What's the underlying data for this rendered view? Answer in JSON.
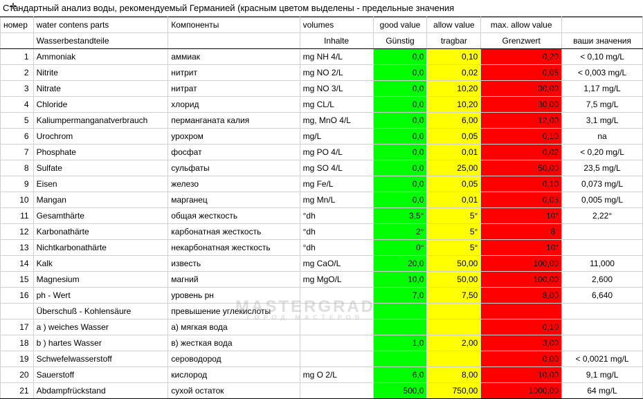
{
  "title": "Стандартный анализ воды, рекомендуемый Германией (красным цветом выделены - предельные значения",
  "colors": {
    "good": "#00ff00",
    "allow": "#ffff00",
    "max": "#ff0000",
    "grid": "#d0d0d0",
    "frame": "#000000"
  },
  "header1": {
    "num": "номер",
    "de": "water contens parts",
    "ru": "Компоненты",
    "unit": "volumes",
    "good": "good value",
    "allow": "allow value",
    "max": "max. allow value",
    "user": ""
  },
  "header2": {
    "num": "",
    "de": "Wasserbestandteile",
    "ru": "",
    "unit": "Inhalte",
    "good": "Günstig",
    "allow": "tragbar",
    "max": "Grenzwert",
    "user": "ваши значения"
  },
  "rows": [
    {
      "n": "1",
      "de": "Ammoniak",
      "ru": "аммиак",
      "unit": "mg  NH 4/L",
      "good": "0,0",
      "allow": "0,10",
      "max": "0,20",
      "user": "< 0,10 mg/L"
    },
    {
      "n": "2",
      "de": "Nitrite",
      "ru": "нитрит",
      "unit": "mg  NO 2/L",
      "good": "0,0",
      "allow": "0,02",
      "max": "0,05",
      "user": "< 0,003 mg/L"
    },
    {
      "n": "3",
      "de": "Nitrate",
      "ru": "нитрат",
      "unit": "mg  NO 3/L",
      "good": "0,0",
      "allow": "10,20",
      "max": "30,00",
      "user": "1,17 mg/L"
    },
    {
      "n": "4",
      "de": "Chloride",
      "ru": "хлорид",
      "unit": "mg  CL/L",
      "good": "0,0",
      "allow": "10,20",
      "max": "30,00",
      "user": "7,5 mg/L"
    },
    {
      "n": "5",
      "de": "Kaliumpermanganatverbrauch",
      "ru": "перманганата калия",
      "unit": "mg, MnO  4/L",
      "good": "0,0",
      "allow": "6,00",
      "max": "12,00",
      "user": "3,1 mg/L"
    },
    {
      "n": "6",
      "de": "Urochrom",
      "ru": "урохром",
      "unit": "mg/L",
      "good": "0,0",
      "allow": "0,05",
      "max": "0,10",
      "user": "na"
    },
    {
      "n": "7",
      "de": "Phosphate",
      "ru": "фосфат",
      "unit": "mg  PO 4/L",
      "good": "0,0",
      "allow": "0,01",
      "max": "0,02",
      "user": "< 0,20 mg/L"
    },
    {
      "n": "8",
      "de": "Sulfate",
      "ru": "сульфаты",
      "unit": "mg SO 4/L",
      "good": "0,0",
      "allow": "25,00",
      "max": "50,00",
      "user": "23,5 mg/L"
    },
    {
      "n": "9",
      "de": "Eisen",
      "ru": "железо",
      "unit": "mg  Fe/L",
      "good": "0,0",
      "allow": "0,05",
      "max": "0,10",
      "user": "0,073 mg/L"
    },
    {
      "n": "10",
      "de": "Mangan",
      "ru": "марганец",
      "unit": "mg Mn/L",
      "good": "0,0",
      "allow": "0,01",
      "max": "0,03",
      "user": "0,005 mg/L"
    },
    {
      "n": "11",
      "de": "Gesamthärte",
      "ru": "общая жесткость",
      "unit": "°dh",
      "good": "3,5°",
      "allow": "5°",
      "max": "10°",
      "user": "2,22°"
    },
    {
      "n": "12",
      "de": "Karbonathärte",
      "ru": "карбонатная жесткость",
      "unit": "°dh",
      "good": "2°",
      "allow": "5°",
      "max": "8°",
      "user": ""
    },
    {
      "n": "13",
      "de": "Nichtkarbonathärte",
      "ru": "некарбонатная жесткость",
      "unit": "°dh",
      "good": "0°",
      "allow": "5°",
      "max": "10°",
      "user": ""
    },
    {
      "n": "14",
      "de": "Kalk",
      "ru": "известь",
      "unit": "mg CaO/L",
      "good": "20,0",
      "allow": "50,00",
      "max": "100,00",
      "user": "11,000"
    },
    {
      "n": "15",
      "de": "Magnesium",
      "ru": "магний",
      "unit": "mg MgO/L",
      "good": "10,0",
      "allow": "50,00",
      "max": "100,00",
      "user": "2,600"
    },
    {
      "n": "16",
      "de": "ph - Wert",
      "ru": "уровень рн",
      "unit": "",
      "good": "7,0",
      "allow": "7,50",
      "max": "8,00",
      "user": "6,640"
    },
    {
      "n": "",
      "de": "Überschuß - Kohlensäure",
      "ru": "превышение углекислоты",
      "unit": "",
      "good": "",
      "allow": "",
      "max": "",
      "user": ""
    },
    {
      "n": "17",
      "de": "a ) weiches Wasser",
      "ru": "а) мягкая вода",
      "unit": "",
      "good": "",
      "allow": "",
      "max": "0,10",
      "user": ""
    },
    {
      "n": "18",
      "de": "b ) hartes Wasser",
      "ru": "в) жесткая вода",
      "unit": "",
      "good": "1,0",
      "allow": "2,00",
      "max": "3,00",
      "user": ""
    },
    {
      "n": "19",
      "de": "Schwefelwasserstoff",
      "ru": "сероводород",
      "unit": "",
      "good": "",
      "allow": "",
      "max": "0,00",
      "user": "< 0,0021 mg/L"
    },
    {
      "n": "20",
      "de": "Sauerstoff",
      "ru": "кислород",
      "unit": "mg O 2/L",
      "good": "6,0",
      "allow": "8,00",
      "max": "10,00",
      "user": "9,1 mg/L"
    },
    {
      "n": "21",
      "de": "Abdampfrückstand",
      "ru": "сухой остаток",
      "unit": "",
      "good": "500,0",
      "allow": "750,00",
      "max": "1000,00",
      "user": "64 mg/L"
    }
  ],
  "watermark": {
    "main": "MASTERGRAD",
    "sub": "ГОРОД МАСТЕРОВ"
  }
}
